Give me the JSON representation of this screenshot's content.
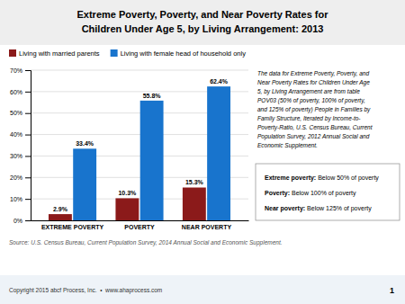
{
  "chart_data": {
    "type": "bar",
    "title": "Extreme Poverty, Poverty, and Near Poverty Rates for\nChildren Under Age 5, by Living Arrangement: 2013",
    "categories": [
      "EXTREME POVERTY",
      "POVERTY",
      "NEAR POVERTY"
    ],
    "series": [
      {
        "name": "Living with married parents",
        "color": "#8B1A1A",
        "values": [
          2.9,
          10.3,
          15.3
        ],
        "value_labels": [
          "2.9%",
          "10.3%",
          "15.3%"
        ]
      },
      {
        "name": "Living with female head of household only",
        "color": "#1874CD",
        "values": [
          33.4,
          55.8,
          62.4
        ],
        "value_labels": [
          "33.4%",
          "55.8%",
          "62.4%"
        ]
      }
    ],
    "ylim": [
      0,
      70
    ],
    "yticks": [
      {
        "value": 0,
        "label": "0%"
      },
      {
        "value": 10,
        "label": "10%"
      },
      {
        "value": 20,
        "label": "20%"
      },
      {
        "value": 30,
        "label": "30%"
      },
      {
        "value": 40,
        "label": "40%"
      },
      {
        "value": 50,
        "label": "50%"
      },
      {
        "value": 60,
        "label": "60%"
      },
      {
        "value": 70,
        "label": "70%"
      }
    ],
    "grid": true,
    "legend": "top",
    "data_labels": true,
    "annotation": "The data for Extreme Poverty, Poverty, and\nNear Poverty Rates for Children Under Age\n5, by Living Arrangement are from table\nPOV03 (50% of poverty, 100% of poverty,\nand 125% of poverty) People in Families by\nFamily Structure, Iterated by Income-to-\nPoverty-Ratio, U.S. Census Bureau, Current\nPopulation Survey, 2012 Annual Social and\nEconomic Supplement.",
    "definitions": [
      {
        "term": "Extreme poverty:",
        "text": " Below 50% of poverty"
      },
      {
        "term": "Poverty:",
        "text": " Below 100% of poverty"
      },
      {
        "term": "Near poverty:",
        "text": " Below 125% of poverty"
      }
    ],
    "source": "Source: U.S. Census Bureau, Current Population Survey, 2014 Annual Social and Economic Supplement.",
    "footer": "Copyright 2015 abcf Process, Inc.  •  www.ahaprocess.com",
    "page_number": "1"
  }
}
